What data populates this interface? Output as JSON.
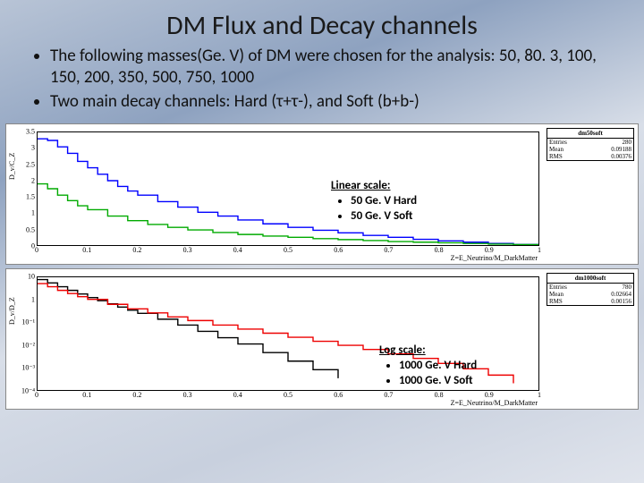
{
  "title": "DM Flux and Decay channels",
  "bullets": [
    "The following masses(Ge. V) of DM were chosen for the analysis: 50, 80. 3, 100, 150, 200, 350, 500, 750, 1000",
    "Two main decay channels: Hard (τ+τ-), and Soft (b+b-)"
  ],
  "plot1": {
    "ylabel": "D_v/C_Z",
    "xlabel": "Z=E_Neutrino/M_DarkMatter",
    "ylim": [
      0,
      3.5
    ],
    "ytick_step": 0.5,
    "xlim": [
      0,
      1
    ],
    "xtick_step": 0.1,
    "background_color": "#ffffff",
    "grid": false,
    "statbox": {
      "title": "dm50soft",
      "entries": "280",
      "mean": "0.09188",
      "rms": "0.00376"
    },
    "series": [
      {
        "name": "50 GeV Hard",
        "color": "#0000ff",
        "line_width": 1.4,
        "type": "step",
        "x": [
          0.0,
          0.02,
          0.04,
          0.06,
          0.08,
          0.1,
          0.12,
          0.14,
          0.16,
          0.18,
          0.2,
          0.24,
          0.28,
          0.32,
          0.36,
          0.4,
          0.45,
          0.5,
          0.55,
          0.6,
          0.65,
          0.7,
          0.75,
          0.8,
          0.85,
          0.9,
          0.95,
          1.0
        ],
        "y": [
          3.3,
          3.25,
          3.05,
          2.85,
          2.6,
          2.4,
          2.2,
          2.0,
          1.82,
          1.68,
          1.55,
          1.35,
          1.18,
          1.02,
          0.9,
          0.78,
          0.66,
          0.55,
          0.46,
          0.38,
          0.3,
          0.24,
          0.18,
          0.13,
          0.09,
          0.05,
          0.02,
          0.0
        ]
      },
      {
        "name": "50 GeV Soft",
        "color": "#00aa00",
        "line_width": 1.4,
        "type": "step",
        "x": [
          0.0,
          0.02,
          0.04,
          0.06,
          0.08,
          0.1,
          0.14,
          0.18,
          0.22,
          0.26,
          0.3,
          0.35,
          0.4,
          0.45,
          0.5,
          0.55,
          0.6,
          0.65,
          0.7,
          0.75,
          0.8,
          0.85,
          0.9,
          0.95,
          1.0
        ],
        "y": [
          1.9,
          1.75,
          1.55,
          1.38,
          1.22,
          1.1,
          0.9,
          0.76,
          0.64,
          0.55,
          0.47,
          0.39,
          0.33,
          0.28,
          0.24,
          0.2,
          0.17,
          0.14,
          0.11,
          0.09,
          0.07,
          0.05,
          0.03,
          0.015,
          0.0
        ]
      }
    ],
    "legend": {
      "title": "Linear scale:",
      "items": [
        "50 Ge. V Hard",
        "50 Ge. V Soft"
      ]
    }
  },
  "plot2": {
    "ylabel": "D_v/D_Z",
    "xlabel": "Z=E_Neutrino/M_DarkMatter",
    "yscale": "log",
    "ylim_exp": [
      -4,
      1
    ],
    "xlim": [
      0,
      1
    ],
    "xtick_step": 0.1,
    "background_color": "#ffffff",
    "statbox": {
      "title": "dm1000soft",
      "entries": "780",
      "mean": "0.02664",
      "rms": "0.00156"
    },
    "yticks_label": [
      "10",
      "1",
      "10⁻¹",
      "10⁻²",
      "10⁻³",
      "10⁻⁴"
    ],
    "series": [
      {
        "name": "1000 GeV Hard",
        "color": "#000000",
        "line_width": 1.4,
        "type": "step",
        "x": [
          0.0,
          0.02,
          0.04,
          0.06,
          0.08,
          0.1,
          0.12,
          0.14,
          0.16,
          0.18,
          0.2,
          0.24,
          0.28,
          0.32,
          0.36,
          0.4,
          0.45,
          0.5,
          0.55,
          0.6
        ],
        "y_exp": [
          0.9,
          0.75,
          0.58,
          0.42,
          0.26,
          0.1,
          -0.04,
          -0.18,
          -0.32,
          -0.46,
          -0.6,
          -0.86,
          -1.12,
          -1.4,
          -1.68,
          -1.96,
          -2.34,
          -2.72,
          -3.1,
          -3.48
        ]
      },
      {
        "name": "1000 GeV Soft",
        "color": "#ee0000",
        "line_width": 1.4,
        "type": "step",
        "x": [
          0.0,
          0.02,
          0.04,
          0.06,
          0.08,
          0.1,
          0.14,
          0.18,
          0.22,
          0.26,
          0.3,
          0.35,
          0.4,
          0.45,
          0.5,
          0.55,
          0.6,
          0.65,
          0.7,
          0.75,
          0.8,
          0.85,
          0.9,
          0.95
        ],
        "y_exp": [
          0.72,
          0.58,
          0.42,
          0.28,
          0.14,
          0.02,
          -0.2,
          -0.4,
          -0.58,
          -0.76,
          -0.92,
          -1.12,
          -1.3,
          -1.48,
          -1.66,
          -1.84,
          -2.02,
          -2.2,
          -2.4,
          -2.6,
          -2.82,
          -3.06,
          -3.34,
          -3.7
        ]
      }
    ],
    "legend": {
      "title": "Log scale:",
      "items": [
        "1000 Ge. V Hard",
        "1000 Ge. V Soft"
      ]
    }
  }
}
